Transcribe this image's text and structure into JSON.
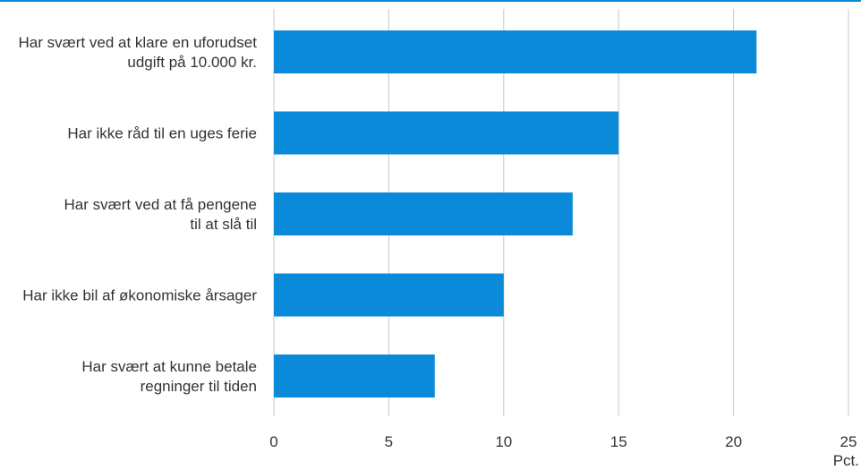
{
  "chart_data": {
    "type": "bar",
    "orientation": "horizontal",
    "categories": [
      [
        "Har svært ved at klare en uforudset",
        "udgift på 10.000 kr."
      ],
      [
        "Har ikke råd til en uges ferie"
      ],
      [
        "Har svært ved at få pengene",
        "til at slå til"
      ],
      [
        "Har ikke bil af økonomiske årsager"
      ],
      [
        "Har svært at kunne betale",
        "regninger til tiden"
      ]
    ],
    "values": [
      21,
      15,
      13,
      10,
      7
    ],
    "xlim": [
      0,
      25
    ],
    "xticks": [
      0,
      5,
      10,
      15,
      20,
      25
    ],
    "xlabel": "Pct.",
    "ylabel": "",
    "title": "",
    "grid": "vertical",
    "bar_color": "#0a8ad8",
    "grid_color": "#c8c8c8"
  }
}
